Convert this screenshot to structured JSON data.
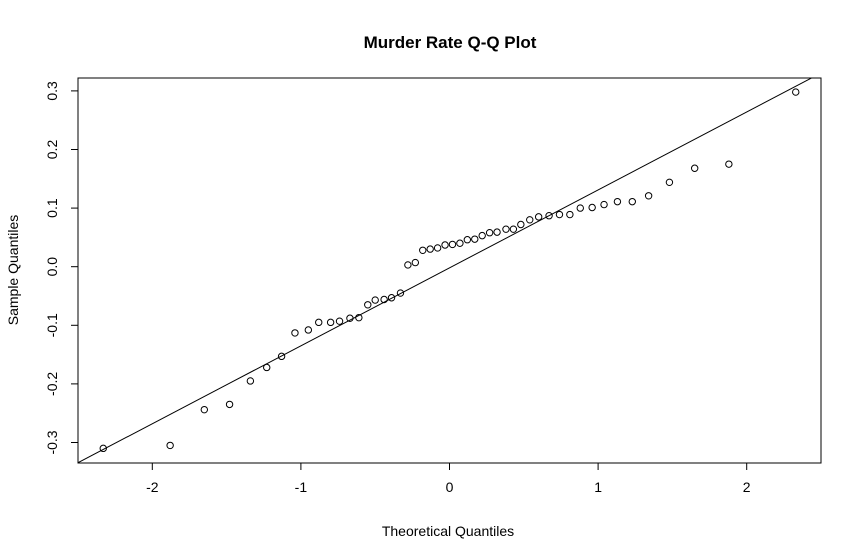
{
  "chart_data": {
    "type": "scatter",
    "title": "Murder Rate Q-Q Plot",
    "xlabel": "Theoretical Quantiles",
    "ylabel": "Sample Quantiles",
    "xlim": [
      -2.5,
      2.5
    ],
    "ylim": [
      -0.335,
      0.322
    ],
    "x_ticks": [
      -2,
      -1,
      0,
      1,
      2
    ],
    "x_tick_labels": [
      "-2",
      "-1",
      "0",
      "1",
      "2"
    ],
    "y_ticks": [
      -0.3,
      -0.2,
      -0.1,
      0.0,
      0.1,
      0.2,
      0.3
    ],
    "y_tick_labels": [
      "-0.3",
      "-0.2",
      "-0.1",
      "0.0",
      "0.1",
      "0.2",
      "0.3"
    ],
    "grid": false,
    "reference_line": {
      "slope": 0.133,
      "intercept": -0.002
    },
    "points": [
      [
        -2.33,
        -0.31
      ],
      [
        -1.88,
        -0.305
      ],
      [
        -1.65,
        -0.244
      ],
      [
        -1.48,
        -0.235
      ],
      [
        -1.34,
        -0.195
      ],
      [
        -1.23,
        -0.172
      ],
      [
        -1.13,
        -0.153
      ],
      [
        -1.04,
        -0.113
      ],
      [
        -0.95,
        -0.108
      ],
      [
        -0.88,
        -0.095
      ],
      [
        -0.8,
        -0.095
      ],
      [
        -0.74,
        -0.093
      ],
      [
        -0.67,
        -0.088
      ],
      [
        -0.61,
        -0.087
      ],
      [
        -0.55,
        -0.065
      ],
      [
        -0.5,
        -0.057
      ],
      [
        -0.44,
        -0.056
      ],
      [
        -0.39,
        -0.053
      ],
      [
        -0.33,
        -0.045
      ],
      [
        -0.28,
        0.003
      ],
      [
        -0.23,
        0.007
      ],
      [
        -0.18,
        0.028
      ],
      [
        -0.13,
        0.03
      ],
      [
        -0.08,
        0.032
      ],
      [
        -0.03,
        0.037
      ],
      [
        0.02,
        0.038
      ],
      [
        0.07,
        0.04
      ],
      [
        0.12,
        0.046
      ],
      [
        0.17,
        0.047
      ],
      [
        0.22,
        0.053
      ],
      [
        0.27,
        0.058
      ],
      [
        0.32,
        0.059
      ],
      [
        0.38,
        0.064
      ],
      [
        0.43,
        0.064
      ],
      [
        0.48,
        0.072
      ],
      [
        0.54,
        0.08
      ],
      [
        0.6,
        0.085
      ],
      [
        0.67,
        0.087
      ],
      [
        0.74,
        0.089
      ],
      [
        0.81,
        0.089
      ],
      [
        0.88,
        0.1
      ],
      [
        0.96,
        0.101
      ],
      [
        1.04,
        0.106
      ],
      [
        1.13,
        0.111
      ],
      [
        1.23,
        0.111
      ],
      [
        1.34,
        0.121
      ],
      [
        1.48,
        0.144
      ],
      [
        1.65,
        0.168
      ],
      [
        1.88,
        0.175
      ],
      [
        2.33,
        0.298
      ]
    ]
  }
}
